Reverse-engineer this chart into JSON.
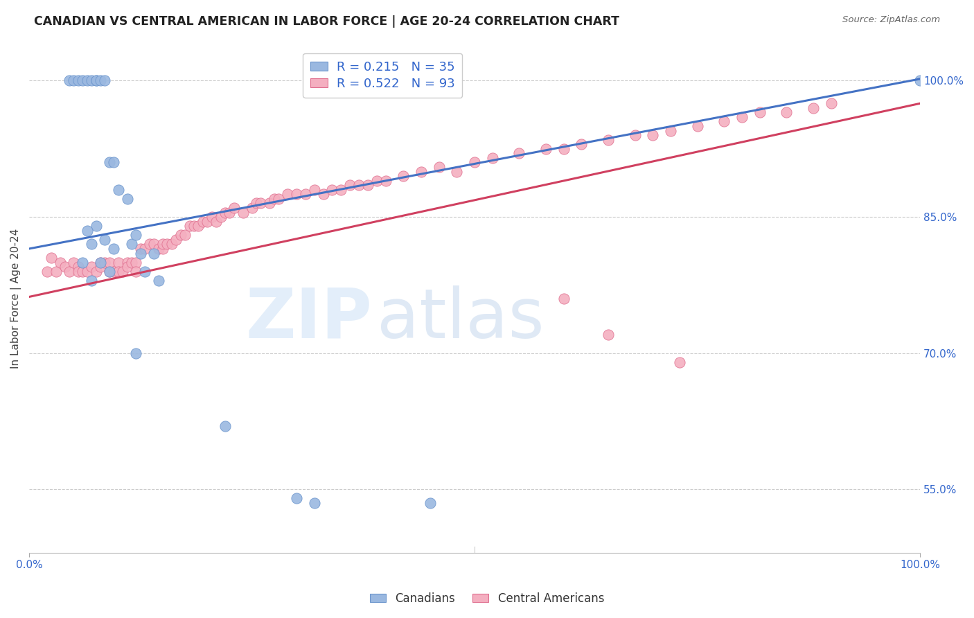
{
  "title": "CANADIAN VS CENTRAL AMERICAN IN LABOR FORCE | AGE 20-24 CORRELATION CHART",
  "source": "Source: ZipAtlas.com",
  "ylabel": "In Labor Force | Age 20-24",
  "xlim": [
    0,
    1.0
  ],
  "ylim": [
    0.48,
    1.04
  ],
  "ytick_vals": [
    0.55,
    0.7,
    0.85,
    1.0
  ],
  "ytick_labels": [
    "55.0%",
    "70.0%",
    "85.0%",
    "100.0%"
  ],
  "xtick_vals": [
    0.0,
    1.0
  ],
  "xtick_labels": [
    "0.0%",
    "100.0%"
  ],
  "canadian_color": "#9ab8e0",
  "canadian_edge": "#6a94cc",
  "central_color": "#f4afc0",
  "central_edge": "#e07090",
  "trend_canadian_color": "#4472c4",
  "trend_central_color": "#d04060",
  "legend_R_can": "0.215",
  "legend_N_can": "35",
  "legend_R_cen": "0.522",
  "legend_N_cen": "93",
  "trend_can_x0": 0.0,
  "trend_can_y0": 0.815,
  "trend_can_x1": 1.0,
  "trend_can_y1": 1.002,
  "trend_cen_x0": 0.0,
  "trend_cen_y0": 0.762,
  "trend_cen_x1": 1.0,
  "trend_cen_y1": 0.975,
  "canadians_x": [
    0.045,
    0.05,
    0.055,
    0.06,
    0.065,
    0.07,
    0.075,
    0.075,
    0.08,
    0.085,
    0.09,
    0.095,
    0.1,
    0.11,
    0.115,
    0.12,
    0.125,
    0.13,
    0.14,
    0.145,
    0.07,
    0.075,
    0.08,
    0.085,
    0.09,
    0.095,
    0.06,
    0.065,
    0.07,
    0.12,
    0.22,
    0.3,
    0.32,
    0.45,
    1.0
  ],
  "canadians_y": [
    1.0,
    1.0,
    1.0,
    1.0,
    1.0,
    1.0,
    1.0,
    1.0,
    1.0,
    1.0,
    0.91,
    0.91,
    0.88,
    0.87,
    0.82,
    0.83,
    0.81,
    0.79,
    0.81,
    0.78,
    0.82,
    0.84,
    0.8,
    0.825,
    0.79,
    0.815,
    0.8,
    0.835,
    0.78,
    0.7,
    0.62,
    0.54,
    0.535,
    0.535,
    1.0
  ],
  "central_x": [
    0.02,
    0.025,
    0.03,
    0.035,
    0.04,
    0.045,
    0.05,
    0.055,
    0.055,
    0.06,
    0.065,
    0.07,
    0.075,
    0.08,
    0.08,
    0.085,
    0.09,
    0.09,
    0.095,
    0.1,
    0.1,
    0.105,
    0.11,
    0.11,
    0.115,
    0.12,
    0.12,
    0.125,
    0.13,
    0.135,
    0.14,
    0.145,
    0.15,
    0.15,
    0.155,
    0.16,
    0.165,
    0.17,
    0.175,
    0.18,
    0.185,
    0.19,
    0.195,
    0.2,
    0.205,
    0.21,
    0.215,
    0.22,
    0.225,
    0.23,
    0.24,
    0.25,
    0.255,
    0.26,
    0.27,
    0.275,
    0.28,
    0.29,
    0.3,
    0.31,
    0.32,
    0.33,
    0.34,
    0.35,
    0.36,
    0.37,
    0.38,
    0.39,
    0.4,
    0.42,
    0.44,
    0.46,
    0.48,
    0.5,
    0.52,
    0.55,
    0.58,
    0.6,
    0.62,
    0.65,
    0.68,
    0.7,
    0.72,
    0.75,
    0.78,
    0.8,
    0.82,
    0.85,
    0.88,
    0.9,
    0.6,
    0.65,
    0.73
  ],
  "central_y": [
    0.79,
    0.805,
    0.79,
    0.8,
    0.795,
    0.79,
    0.8,
    0.795,
    0.79,
    0.79,
    0.79,
    0.795,
    0.79,
    0.8,
    0.795,
    0.8,
    0.79,
    0.8,
    0.79,
    0.8,
    0.79,
    0.79,
    0.8,
    0.795,
    0.8,
    0.8,
    0.79,
    0.815,
    0.815,
    0.82,
    0.82,
    0.815,
    0.815,
    0.82,
    0.82,
    0.82,
    0.825,
    0.83,
    0.83,
    0.84,
    0.84,
    0.84,
    0.845,
    0.845,
    0.85,
    0.845,
    0.85,
    0.855,
    0.855,
    0.86,
    0.855,
    0.86,
    0.865,
    0.865,
    0.865,
    0.87,
    0.87,
    0.875,
    0.875,
    0.875,
    0.88,
    0.875,
    0.88,
    0.88,
    0.885,
    0.885,
    0.885,
    0.89,
    0.89,
    0.895,
    0.9,
    0.905,
    0.9,
    0.91,
    0.915,
    0.92,
    0.925,
    0.925,
    0.93,
    0.935,
    0.94,
    0.94,
    0.945,
    0.95,
    0.955,
    0.96,
    0.965,
    0.965,
    0.97,
    0.975,
    0.76,
    0.72,
    0.69
  ]
}
